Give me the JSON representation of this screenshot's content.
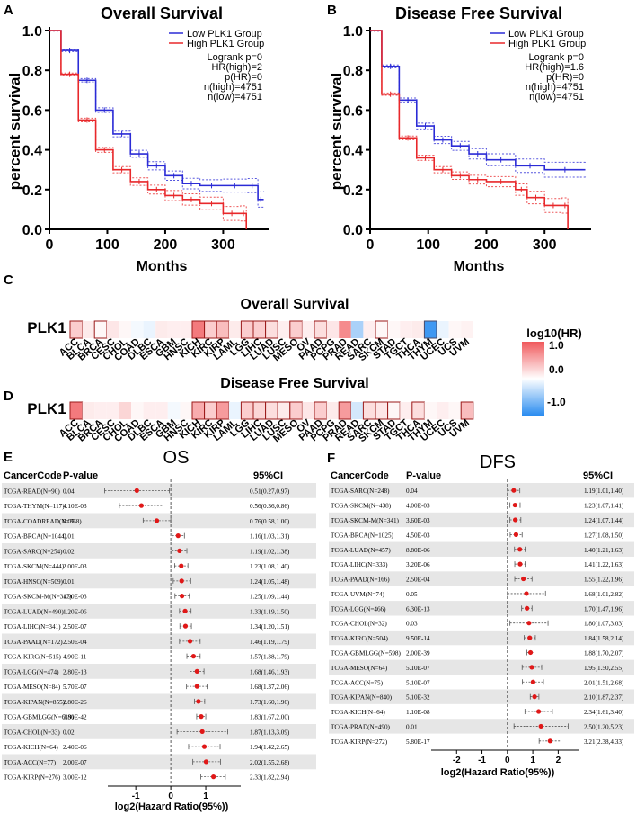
{
  "colors": {
    "low": "#2b2bd6",
    "high": "#e8282b",
    "pos": "#f0595c",
    "neg": "#2a8cf0",
    "pt": "#e01818",
    "stripe": "#e6e6e6",
    "edge": "#9b1a1a"
  },
  "panels": {
    "A": {
      "letter": "A",
      "title": "Overall Survival",
      "ylabel": "percent survival",
      "xlabel": "Months",
      "yticks": [
        "0.0",
        "0.2",
        "0.4",
        "0.6",
        "0.8",
        "1.0"
      ],
      "xticks": [
        "0",
        "100",
        "200",
        "300"
      ],
      "legend": [
        "Low PLK1 Group",
        "High PLK1 Group"
      ],
      "stats": [
        "Logrank p=0",
        "HR(high)=2",
        "p(HR)=0",
        "n(high)=4751",
        "n(low)=4751"
      ]
    },
    "B": {
      "letter": "B",
      "title": "Disease Free Survival",
      "ylabel": "percent survival",
      "xlabel": "Months",
      "yticks": [
        "0.0",
        "0.2",
        "0.4",
        "0.6",
        "0.8",
        "1.0"
      ],
      "xticks": [
        "0",
        "100",
        "200",
        "300"
      ],
      "legend": [
        "Low PLK1 Group",
        "High PLK1 Group"
      ],
      "stats": [
        "Logrank p=0",
        "HR(high)=1.6",
        "p(HR)=0",
        "n(high)=4751",
        "n(low)=4751"
      ]
    },
    "C": {
      "letter": "C",
      "title": "Overall Survival",
      "gene": "PLK1"
    },
    "D": {
      "letter": "D",
      "title": "Disease Free Survival",
      "gene": "PLK1"
    },
    "E": {
      "letter": "E",
      "title": "OS",
      "h1": "CancerCode",
      "h2": "P-value",
      "h3": "95%CI",
      "xlabel": "log2(Hazard Ratio(95%))",
      "xticks": [
        "-1",
        "0",
        "1"
      ]
    },
    "F": {
      "letter": "F",
      "title": "DFS",
      "h1": "CancerCode",
      "h2": "P-value",
      "h3": "95%CI",
      "xlabel": "log2(Hazard Ratio(95%))",
      "xticks": [
        "-2",
        "-1",
        "0",
        "1",
        "2"
      ]
    }
  },
  "colorbar": {
    "title": "log10(HR)",
    "labels": [
      "1.0",
      "0.0",
      "-1.0"
    ]
  },
  "chart_data": [
    {
      "id": "km_os",
      "type": "line",
      "title": "Overall Survival",
      "xlabel": "Months",
      "ylabel": "percent survival",
      "xlim": [
        0,
        380
      ],
      "ylim": [
        0,
        1
      ],
      "series": [
        {
          "name": "Low PLK1 Group",
          "x": [
            0,
            20,
            50,
            80,
            110,
            140,
            170,
            200,
            230,
            260,
            300,
            340,
            360,
            370
          ],
          "y": [
            1.0,
            0.9,
            0.75,
            0.6,
            0.48,
            0.38,
            0.32,
            0.27,
            0.23,
            0.22,
            0.22,
            0.22,
            0.15,
            0.15
          ]
        },
        {
          "name": "High PLK1 Group",
          "x": [
            0,
            20,
            50,
            80,
            110,
            140,
            170,
            200,
            230,
            260,
            300,
            330,
            340
          ],
          "y": [
            1.0,
            0.78,
            0.55,
            0.4,
            0.3,
            0.24,
            0.2,
            0.17,
            0.15,
            0.13,
            0.08,
            0.08,
            0.0
          ]
        }
      ]
    },
    {
      "id": "km_dfs",
      "type": "line",
      "title": "Disease Free Survival",
      "xlabel": "Months",
      "ylabel": "percent survival",
      "xlim": [
        0,
        380
      ],
      "ylim": [
        0,
        1
      ],
      "series": [
        {
          "name": "Low PLK1 Group",
          "x": [
            0,
            20,
            50,
            80,
            110,
            140,
            170,
            200,
            250,
            300,
            370
          ],
          "y": [
            1.0,
            0.82,
            0.65,
            0.52,
            0.45,
            0.42,
            0.38,
            0.35,
            0.32,
            0.3,
            0.3
          ]
        },
        {
          "name": "High PLK1 Group",
          "x": [
            0,
            20,
            50,
            80,
            110,
            140,
            170,
            200,
            250,
            270,
            300,
            330,
            340
          ],
          "y": [
            1.0,
            0.68,
            0.46,
            0.36,
            0.3,
            0.27,
            0.25,
            0.24,
            0.2,
            0.16,
            0.12,
            0.12,
            0.0
          ]
        }
      ]
    },
    {
      "id": "heat_os",
      "type": "heatmap",
      "title": "Overall Survival",
      "row": "PLK1",
      "categories": [
        "ACC",
        "BLCA",
        "BRCA",
        "CESC",
        "CHOL",
        "COAD",
        "DLBC",
        "ESCA",
        "GBM",
        "HNSC",
        "KICH",
        "KIRC",
        "KIRP",
        "LAML",
        "LGG",
        "LIHC",
        "LUAD",
        "LUSC",
        "MESO",
        "OV",
        "PAAD",
        "PCPG",
        "PRAD",
        "READ",
        "SARC",
        "SKCM",
        "STAD",
        "TGCT",
        "THCA",
        "THYM",
        "UCEC",
        "UCS",
        "UVM"
      ],
      "values": [
        0.3,
        0.12,
        0.05,
        0.15,
        0.05,
        -0.05,
        -0.1,
        0.12,
        0.1,
        0.1,
        0.8,
        0.3,
        0.4,
        0.12,
        0.3,
        0.3,
        0.2,
        0.1,
        0.3,
        0.1,
        0.2,
        0.15,
        0.7,
        -0.4,
        0.1,
        0.05,
        0.05,
        0.1,
        0.12,
        -0.9,
        -0.1,
        0.05,
        0.08
      ],
      "outlined": [
        1,
        0,
        1,
        0,
        0,
        0,
        0,
        0,
        0,
        0,
        1,
        1,
        1,
        0,
        1,
        1,
        1,
        0,
        1,
        0,
        1,
        0,
        0,
        0,
        0,
        1,
        0,
        0,
        0,
        1,
        0,
        0,
        0
      ],
      "colorbar": [
        -1,
        1
      ]
    },
    {
      "id": "heat_dfs",
      "type": "heatmap",
      "title": "Disease Free Survival",
      "row": "PLK1",
      "categories": [
        "ACC",
        "BLCA",
        "BRCA",
        "CESC",
        "CHOL",
        "COAD",
        "DLBC",
        "ESCA",
        "GBM",
        "HNSC",
        "KICH",
        "KIRC",
        "KIRP",
        "LAML",
        "LGG",
        "LIHC",
        "LUAD",
        "LUSC",
        "MESO",
        "OV",
        "PAAD",
        "PCPG",
        "PRAD",
        "READ",
        "SARC",
        "SKCM",
        "STAD",
        "TGCT",
        "THCA",
        "THYM",
        "UCEC",
        "UCS",
        "UVM"
      ],
      "values": [
        0.8,
        0.12,
        0.1,
        0.1,
        0.25,
        0.05,
        0.1,
        0.1,
        -0.05,
        0.05,
        0.5,
        0.3,
        0.6,
        -0.1,
        0.3,
        0.25,
        0.2,
        0.12,
        0.3,
        0.15,
        0.3,
        0.12,
        0.6,
        -0.2,
        0.2,
        0.15,
        0.05,
        0.1,
        0.2,
        0.05,
        0.1,
        0.05,
        0.4
      ],
      "outlined": [
        1,
        0,
        0,
        0,
        0,
        0,
        0,
        0,
        0,
        0,
        1,
        1,
        1,
        0,
        1,
        1,
        1,
        1,
        1,
        0,
        1,
        0,
        1,
        0,
        1,
        1,
        1,
        0,
        1,
        0,
        0,
        0,
        1
      ],
      "colorbar": [
        -1,
        1
      ]
    },
    {
      "id": "forest_os",
      "type": "scatter",
      "title": "OS",
      "xlabel": "log2(Hazard Ratio(95%))",
      "xlim": [
        -1.8,
        2
      ],
      "rows": [
        {
          "code": "TCGA-READ(N=90)",
          "p": "0.04",
          "ci": "0.51(0.27,0.97)",
          "est": -0.97,
          "lo": -1.89,
          "hi": -0.04
        },
        {
          "code": "TCGA-THYM(N=117)",
          "p": "4.10E-03",
          "ci": "0.56(0.36,0.86)",
          "est": -0.84,
          "lo": -1.47,
          "hi": -0.22
        },
        {
          "code": "TCGA-COADREAD(N=368)",
          "p": "0.05",
          "ci": "0.76(0.58,1.00)",
          "est": -0.4,
          "lo": -0.79,
          "hi": 0.0
        },
        {
          "code": "TCGA-BRCA(N=1044)",
          "p": "0.01",
          "ci": "1.16(1.03,1.31)",
          "est": 0.21,
          "lo": 0.04,
          "hi": 0.39
        },
        {
          "code": "TCGA-SARC(N=254)",
          "p": "0.02",
          "ci": "1.19(1.02,1.38)",
          "est": 0.25,
          "lo": 0.03,
          "hi": 0.46
        },
        {
          "code": "TCGA-SKCM(N=444)",
          "p": "2.00E-03",
          "ci": "1.23(1.08,1.40)",
          "est": 0.3,
          "lo": 0.11,
          "hi": 0.49
        },
        {
          "code": "TCGA-HNSC(N=509)",
          "p": "0.01",
          "ci": "1.24(1.05,1.48)",
          "est": 0.31,
          "lo": 0.07,
          "hi": 0.57
        },
        {
          "code": "TCGA-SKCM-M(N=347)",
          "p": "1.90E-03",
          "ci": "1.25(1.09,1.44)",
          "est": 0.32,
          "lo": 0.12,
          "hi": 0.53
        },
        {
          "code": "TCGA-LUAD(N=490)",
          "p": "1.20E-06",
          "ci": "1.33(1.19,1.50)",
          "est": 0.41,
          "lo": 0.25,
          "hi": 0.58
        },
        {
          "code": "TCGA-LIHC(N=341)",
          "p": "2.50E-07",
          "ci": "1.34(1.20,1.51)",
          "est": 0.42,
          "lo": 0.26,
          "hi": 0.59
        },
        {
          "code": "TCGA-PAAD(N=172)",
          "p": "2.50E-04",
          "ci": "1.46(1.19,1.79)",
          "est": 0.55,
          "lo": 0.25,
          "hi": 0.84
        },
        {
          "code": "TCGA-KIRC(N=515)",
          "p": "4.90E-11",
          "ci": "1.57(1.38,1.79)",
          "est": 0.65,
          "lo": 0.46,
          "hi": 0.84
        },
        {
          "code": "TCGA-LGG(N=474)",
          "p": "2.80E-13",
          "ci": "1.68(1.46,1.93)",
          "est": 0.75,
          "lo": 0.55,
          "hi": 0.95
        },
        {
          "code": "TCGA-MESO(N=84)",
          "p": "5.70E-07",
          "ci": "1.68(1.37,2.06)",
          "est": 0.75,
          "lo": 0.45,
          "hi": 1.04
        },
        {
          "code": "TCGA-KIPAN(N=855)",
          "p": "2.80E-26",
          "ci": "1.73(1.60,1.96)",
          "est": 0.79,
          "lo": 0.68,
          "hi": 0.97
        },
        {
          "code": "TCGA-GBMLGG(N=619)",
          "p": "3.80E-42",
          "ci": "1.83(1.67,2.00)",
          "est": 0.87,
          "lo": 0.74,
          "hi": 1.0
        },
        {
          "code": "TCGA-CHOL(N=33)",
          "p": "0.02",
          "ci": "1.87(1.13,3.09)",
          "est": 0.9,
          "lo": 0.18,
          "hi": 1.63
        },
        {
          "code": "TCGA-KICH(N=64)",
          "p": "2.40E-06",
          "ci": "1.94(1.42,2.65)",
          "est": 0.96,
          "lo": 0.51,
          "hi": 1.41
        },
        {
          "code": "TCGA-ACC(N=77)",
          "p": "2.00E-07",
          "ci": "2.02(1.55,2.68)",
          "est": 1.01,
          "lo": 0.63,
          "hi": 1.42
        },
        {
          "code": "TCGA-KIRP(N=276)",
          "p": "3.00E-12",
          "ci": "2.33(1.82,2.94)",
          "est": 1.22,
          "lo": 0.86,
          "hi": 1.56
        }
      ]
    },
    {
      "id": "forest_dfs",
      "type": "scatter",
      "title": "DFS",
      "xlabel": "log2(Hazard Ratio(95%))",
      "xlim": [
        -3,
        2.8
      ],
      "rows": [
        {
          "code": "TCGA-SARC(N=248)",
          "p": "0.04",
          "ci": "1.19(1.01,1.40)",
          "est": 0.25,
          "lo": 0.01,
          "hi": 0.49
        },
        {
          "code": "TCGA-SKCM(N=438)",
          "p": "4.00E-03",
          "ci": "1.23(1.07,1.41)",
          "est": 0.3,
          "lo": 0.1,
          "hi": 0.5
        },
        {
          "code": "TCGA-SKCM-M(N=341)",
          "p": "3.60E-03",
          "ci": "1.24(1.07,1.44)",
          "est": 0.31,
          "lo": 0.1,
          "hi": 0.53
        },
        {
          "code": "TCGA-BRCA(N=1025)",
          "p": "4.50E-03",
          "ci": "1.27(1.08,1.50)",
          "est": 0.34,
          "lo": 0.11,
          "hi": 0.58
        },
        {
          "code": "TCGA-LUAD(N=457)",
          "p": "8.80E-06",
          "ci": "1.40(1.21,1.63)",
          "est": 0.49,
          "lo": 0.28,
          "hi": 0.7
        },
        {
          "code": "TCGA-LIHC(N=333)",
          "p": "3.20E-06",
          "ci": "1.41(1.22,1.63)",
          "est": 0.5,
          "lo": 0.29,
          "hi": 0.7
        },
        {
          "code": "TCGA-PAAD(N=166)",
          "p": "2.50E-04",
          "ci": "1.55(1.22,1.96)",
          "est": 0.63,
          "lo": 0.29,
          "hi": 0.97
        },
        {
          "code": "TCGA-UVM(N=74)",
          "p": "0.05",
          "ci": "1.68(1.01,2.82)",
          "est": 0.75,
          "lo": 0.01,
          "hi": 1.5
        },
        {
          "code": "TCGA-LGG(N=466)",
          "p": "6.30E-13",
          "ci": "1.70(1.47,1.96)",
          "est": 0.77,
          "lo": 0.56,
          "hi": 0.97
        },
        {
          "code": "TCGA-CHOL(N=32)",
          "p": "0.03",
          "ci": "1.80(1.07,3.03)",
          "est": 0.85,
          "lo": 0.1,
          "hi": 1.6
        },
        {
          "code": "TCGA-KIRC(N=504)",
          "p": "9.50E-14",
          "ci": "1.84(1.58,2.14)",
          "est": 0.88,
          "lo": 0.66,
          "hi": 1.1
        },
        {
          "code": "TCGA-GBMLGG(N=598)",
          "p": "2.00E-39",
          "ci": "1.88(1.70,2.07)",
          "est": 0.91,
          "lo": 0.77,
          "hi": 1.05
        },
        {
          "code": "TCGA-MESO(N=64)",
          "p": "5.10E-07",
          "ci": "1.95(1.50,2.55)",
          "est": 0.96,
          "lo": 0.58,
          "hi": 1.35
        },
        {
          "code": "TCGA-ACC(N=75)",
          "p": "5.10E-07",
          "ci": "2.01(1.51,2.68)",
          "est": 1.01,
          "lo": 0.59,
          "hi": 1.42
        },
        {
          "code": "TCGA-KIPAN(N=840)",
          "p": "5.10E-32",
          "ci": "2.10(1.87,2.37)",
          "est": 1.07,
          "lo": 0.9,
          "hi": 1.24
        },
        {
          "code": "TCGA-KICH(N=64)",
          "p": "1.10E-08",
          "ci": "2.34(1.61,3.40)",
          "est": 1.23,
          "lo": 0.69,
          "hi": 1.77
        },
        {
          "code": "TCGA-PRAD(N=490)",
          "p": "0.01",
          "ci": "2.50(1.20,5.23)",
          "est": 1.32,
          "lo": 0.26,
          "hi": 2.39
        },
        {
          "code": "TCGA-KIRP(N=272)",
          "p": "5.80E-17",
          "ci": "3.21(2.38,4.33)",
          "est": 1.68,
          "lo": 1.25,
          "hi": 2.11
        }
      ]
    }
  ]
}
